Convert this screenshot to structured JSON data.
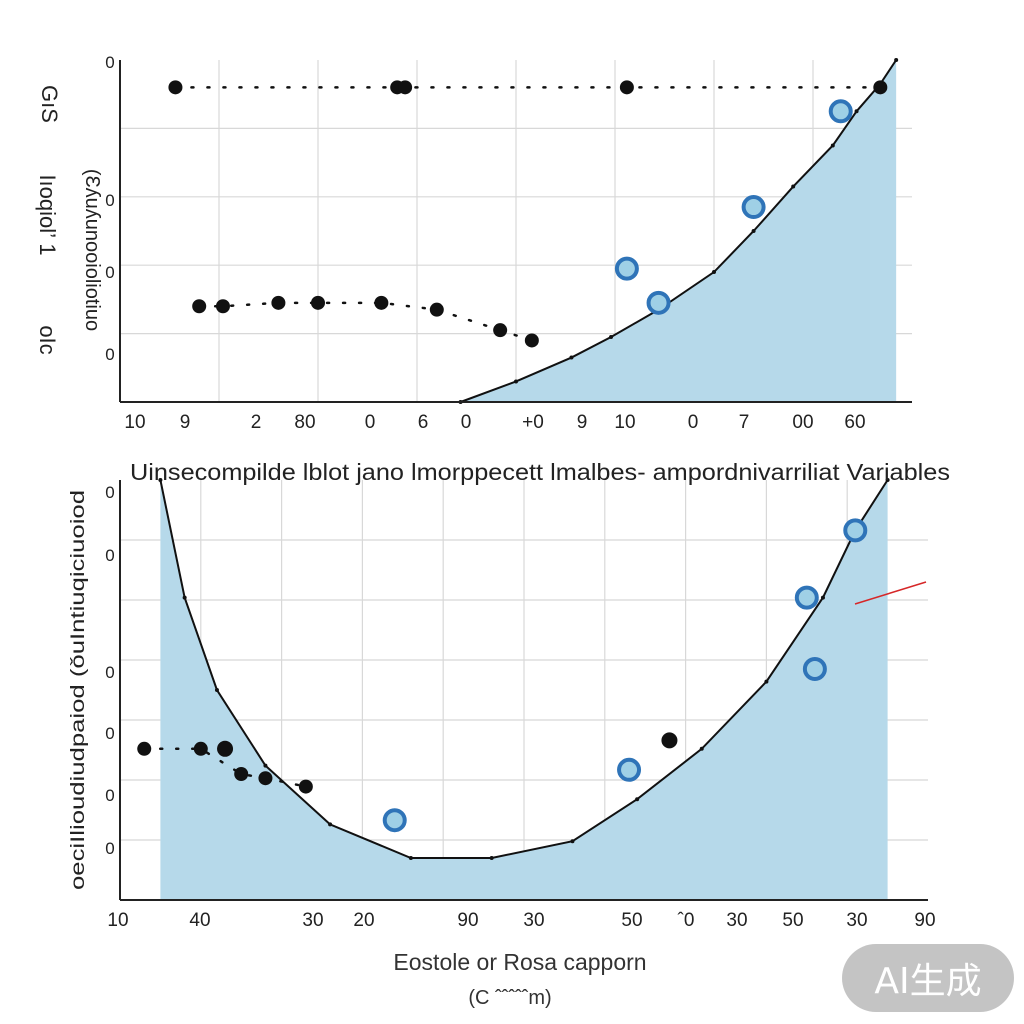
{
  "chart_data": [
    {
      "type": "line",
      "title": "",
      "y_axis_label_left": "GıS",
      "y_axis_label_mid": "Iıoqiol’ 1",
      "y_axis_label_low": "oIc",
      "y_axis_label_rotated": "(Ɛʎuʎunooioliotiuo",
      "y_ticks": [
        "0",
        "0",
        "0",
        "0"
      ],
      "x_ticks": [
        "10",
        "9",
        "2",
        "80",
        "0",
        "6",
        "0",
        "+0",
        "9",
        "10",
        "0",
        "7",
        "00",
        "60"
      ],
      "xlim": [
        0,
        100
      ],
      "ylim": [
        0,
        100
      ],
      "grid": true,
      "colors": {
        "fill": "#b6d9ea",
        "line": "#111111",
        "marker_blue": "#2f74b8",
        "marker_black": "#111111"
      },
      "series": [
        {
          "name": "curve",
          "kind": "area",
          "x": [
            43,
            50,
            57,
            62,
            68,
            75,
            80,
            85,
            90,
            93,
            96,
            98
          ],
          "y": [
            0,
            6,
            13,
            19,
            27,
            38,
            50,
            63,
            75,
            85,
            93,
            100
          ]
        },
        {
          "name": "upper dots",
          "kind": "dotted",
          "x": [
            7,
            35,
            36,
            64,
            96
          ],
          "y": [
            92,
            92,
            92,
            92,
            92
          ]
        },
        {
          "name": "lower dots",
          "kind": "dotted",
          "x": [
            10,
            13,
            20,
            25,
            33,
            40,
            48,
            52
          ],
          "y": [
            28,
            28,
            29,
            29,
            29,
            27,
            21,
            18
          ]
        },
        {
          "name": "blue markers",
          "kind": "markers",
          "x": [
            64,
            68,
            80,
            91
          ],
          "y": [
            39,
            29,
            57,
            85
          ]
        }
      ]
    },
    {
      "type": "area",
      "title": "Uinsecompilde lblot jano lmorppecett lmalbes- ampordnivarriliat Variables",
      "xlabel": "Eostole or Rosa capporn",
      "xlabel_sub": "(C ˆˆˆˆˆm)",
      "ylabel": "oeciIlioudiudpaiod (ǒuIntiuqiciuoiod",
      "y_ticks": [
        "0",
        "0",
        "0",
        "0",
        "0",
        "0"
      ],
      "x_ticks": [
        "10",
        "40",
        "30",
        "20",
        "90",
        "30",
        "50",
        "ˆ0",
        "30",
        "50",
        "30",
        "90"
      ],
      "xlim": [
        0,
        100
      ],
      "ylim": [
        0,
        100
      ],
      "grid": true,
      "colors": {
        "fill": "#b6d9ea",
        "line": "#111111",
        "marker_blue": "#2f74b8",
        "marker_black": "#111111",
        "accent": "#d62728"
      },
      "series": [
        {
          "name": "u-curve",
          "kind": "area",
          "x": [
            5,
            8,
            12,
            18,
            26,
            36,
            46,
            56,
            64,
            72,
            80,
            87,
            91,
            95
          ],
          "y": [
            100,
            72,
            50,
            32,
            18,
            10,
            10,
            14,
            24,
            36,
            52,
            72,
            88,
            100
          ]
        },
        {
          "name": "left markers",
          "kind": "dotted",
          "x": [
            3,
            10,
            15,
            18,
            23
          ],
          "y": [
            36,
            36,
            30,
            29,
            27
          ]
        },
        {
          "name": "blue markers",
          "kind": "markers",
          "x": [
            34,
            63,
            85,
            86,
            91
          ],
          "y": [
            19,
            31,
            72,
            55,
            88
          ]
        },
        {
          "name": "black markers",
          "kind": "markers",
          "x": [
            13,
            68
          ],
          "y": [
            36,
            38
          ]
        }
      ]
    }
  ],
  "watermark": "AI生成"
}
